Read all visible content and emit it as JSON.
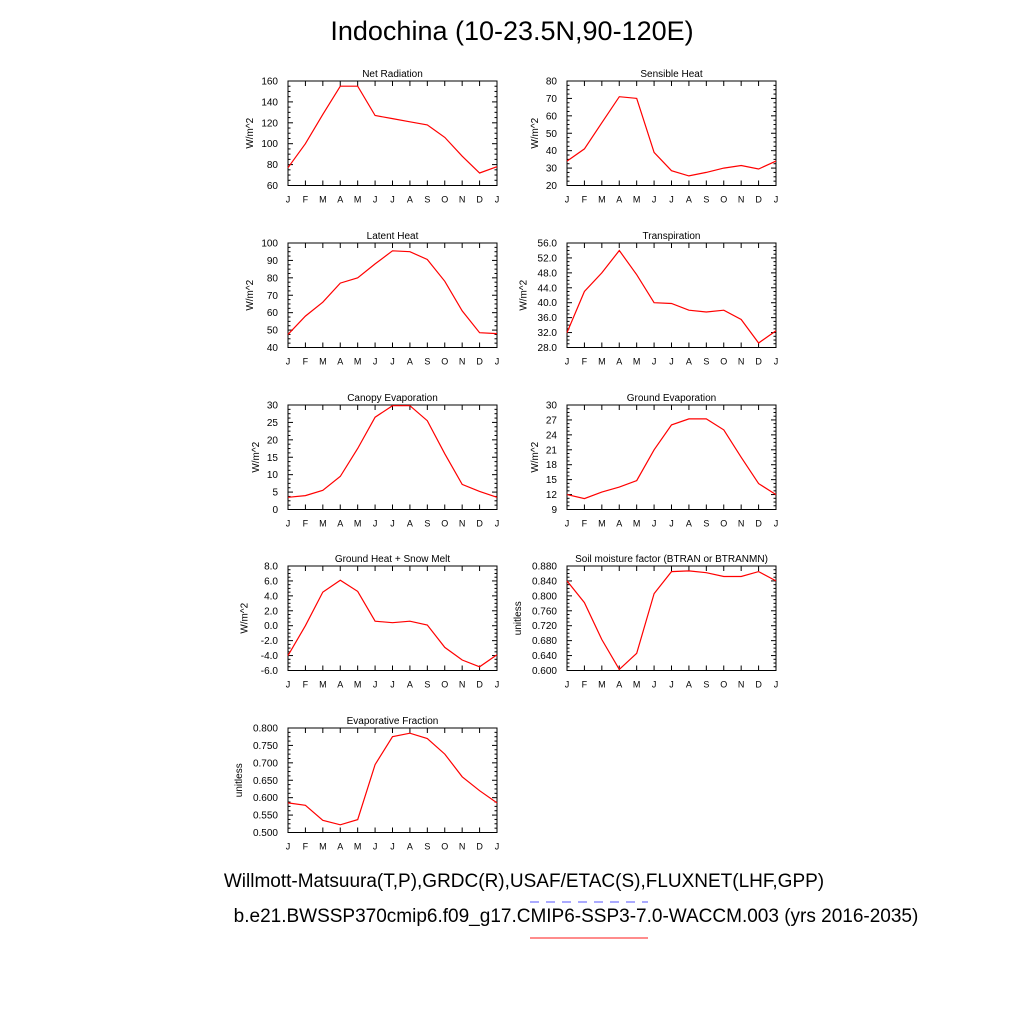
{
  "title": "Indochina (10-23.5N,90-120E)",
  "footer": {
    "observations": "Willmott-Matsuura(T,P),GRDC(R),USAF/ETAC(S),FLUXNET(LHF,GPP)",
    "case": "b.e21.BWSSP370cmip6.f09_g17.CMIP6-SSP3-7.0-WACCM.003 (yrs 2016-2035)"
  },
  "colors": {
    "series": "#ff0000",
    "axis": "#000000",
    "obs_legend": "#7777ff",
    "case_legend": "#ff6666"
  },
  "chart_data": [
    {
      "type": "line",
      "title": "Net Radiation",
      "ylabel": "W/m^2",
      "x": [
        "J",
        "F",
        "M",
        "A",
        "M",
        "J",
        "J",
        "A",
        "S",
        "O",
        "N",
        "D",
        "J"
      ],
      "ylim": [
        60,
        160
      ],
      "yticks": [
        "60",
        "80",
        "100",
        "120",
        "140",
        "160"
      ],
      "series": [
        {
          "values": [
            77,
            100,
            128,
            155,
            155,
            127,
            124,
            121,
            118,
            106,
            88,
            72,
            78
          ]
        }
      ]
    },
    {
      "type": "line",
      "title": "Sensible Heat",
      "ylabel": "W/m^2",
      "x": [
        "J",
        "F",
        "M",
        "A",
        "M",
        "J",
        "J",
        "A",
        "S",
        "O",
        "N",
        "D",
        "J"
      ],
      "ylim": [
        20,
        80
      ],
      "yticks": [
        "20",
        "30",
        "40",
        "50",
        "60",
        "70",
        "80"
      ],
      "series": [
        {
          "values": [
            34,
            41,
            56,
            71,
            70,
            39,
            28.5,
            25.5,
            27.5,
            30,
            31.5,
            29.5,
            34
          ]
        }
      ]
    },
    {
      "type": "line",
      "title": "Latent Heat",
      "ylabel": "W/m^2",
      "x": [
        "J",
        "F",
        "M",
        "A",
        "M",
        "J",
        "J",
        "A",
        "S",
        "O",
        "N",
        "D",
        "J"
      ],
      "ylim": [
        40,
        100
      ],
      "yticks": [
        "40",
        "50",
        "60",
        "70",
        "80",
        "90",
        "100"
      ],
      "series": [
        {
          "values": [
            47.5,
            58,
            66,
            77,
            80,
            88,
            95.5,
            95,
            90.5,
            78,
            61,
            48.5,
            48
          ]
        }
      ]
    },
    {
      "type": "line",
      "title": "Transpiration",
      "ylabel": "W/m^2",
      "x": [
        "J",
        "F",
        "M",
        "A",
        "M",
        "J",
        "J",
        "A",
        "S",
        "O",
        "N",
        "D",
        "J"
      ],
      "ylim": [
        28,
        56
      ],
      "yticks": [
        "28.0",
        "32.0",
        "36.0",
        "40.0",
        "44.0",
        "48.0",
        "52.0",
        "56.0"
      ],
      "series": [
        {
          "values": [
            32,
            43,
            48,
            54,
            47.5,
            40,
            39.8,
            38,
            37.5,
            38,
            35.5,
            29.2,
            32.5
          ]
        }
      ]
    },
    {
      "type": "line",
      "title": "Canopy Evaporation",
      "ylabel": "W/m^2",
      "x": [
        "J",
        "F",
        "M",
        "A",
        "M",
        "J",
        "J",
        "A",
        "S",
        "O",
        "N",
        "D",
        "J"
      ],
      "ylim": [
        0,
        30
      ],
      "yticks": [
        "0",
        "5",
        "10",
        "15",
        "20",
        "25",
        "30"
      ],
      "series": [
        {
          "values": [
            3.5,
            4,
            5.5,
            9.5,
            17.5,
            26.5,
            29.8,
            29.8,
            25.5,
            16,
            7.2,
            5.2,
            3.5
          ]
        }
      ]
    },
    {
      "type": "line",
      "title": "Ground Evaporation",
      "ylabel": "W/m^2",
      "x": [
        "J",
        "F",
        "M",
        "A",
        "M",
        "J",
        "J",
        "A",
        "S",
        "O",
        "N",
        "D",
        "J"
      ],
      "ylim": [
        9,
        30
      ],
      "yticks": [
        "9",
        "12",
        "15",
        "18",
        "21",
        "24",
        "27",
        "30"
      ],
      "series": [
        {
          "values": [
            12,
            11.2,
            12.5,
            13.5,
            14.8,
            21,
            26,
            27.2,
            27.2,
            25,
            19.5,
            14.2,
            12
          ]
        }
      ]
    },
    {
      "type": "line",
      "title": "Ground Heat + Snow Melt",
      "ylabel": "W/m^2",
      "x": [
        "J",
        "F",
        "M",
        "A",
        "M",
        "J",
        "J",
        "A",
        "S",
        "O",
        "N",
        "D",
        "J"
      ],
      "ylim": [
        -6,
        8
      ],
      "yticks": [
        "-6.0",
        "-4.0",
        "-2.0",
        "0.0",
        "2.0",
        "4.0",
        "6.0",
        "8.0"
      ],
      "series": [
        {
          "values": [
            -4,
            0,
            4.5,
            6.1,
            4.6,
            0.6,
            0.4,
            0.6,
            0.1,
            -2.9,
            -4.6,
            -5.5,
            -3.9
          ]
        }
      ]
    },
    {
      "type": "line",
      "title": "Soil moisture factor (BTRAN or BTRANMN)",
      "ylabel": "unitless",
      "x": [
        "J",
        "F",
        "M",
        "A",
        "M",
        "J",
        "J",
        "A",
        "S",
        "O",
        "N",
        "D",
        "J"
      ],
      "ylim": [
        0.6,
        0.88
      ],
      "yticks": [
        "0.600",
        "0.640",
        "0.680",
        "0.720",
        "0.760",
        "0.800",
        "0.840",
        "0.880"
      ],
      "series": [
        {
          "values": [
            0.84,
            0.782,
            0.683,
            0.603,
            0.646,
            0.806,
            0.865,
            0.867,
            0.862,
            0.852,
            0.852,
            0.865,
            0.84
          ]
        }
      ]
    },
    {
      "type": "line",
      "title": "Evaporative Fraction",
      "ylabel": "unitless",
      "x": [
        "J",
        "F",
        "M",
        "A",
        "M",
        "J",
        "J",
        "A",
        "S",
        "O",
        "N",
        "D",
        "J"
      ],
      "ylim": [
        0.5,
        0.8
      ],
      "yticks": [
        "0.500",
        "0.550",
        "0.600",
        "0.650",
        "0.700",
        "0.750",
        "0.800"
      ],
      "series": [
        {
          "values": [
            0.585,
            0.578,
            0.535,
            0.522,
            0.537,
            0.695,
            0.775,
            0.785,
            0.77,
            0.725,
            0.66,
            0.62,
            0.585
          ]
        }
      ]
    }
  ]
}
